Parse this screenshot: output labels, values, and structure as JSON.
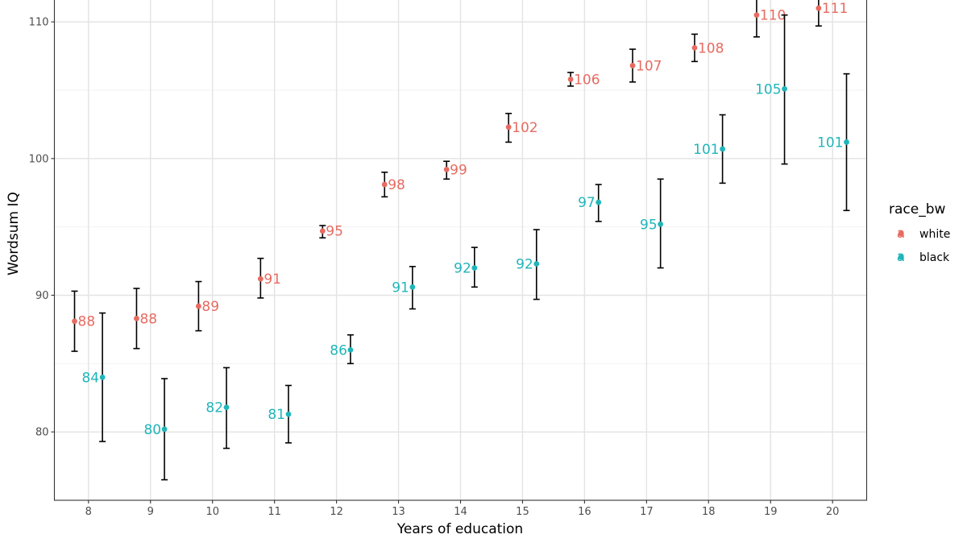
{
  "chart_data": {
    "type": "scatter",
    "title": "",
    "xlabel": "Years of education",
    "ylabel": "Wordsum IQ",
    "xlim": [
      7.45,
      20.55
    ],
    "ylim": [
      75.0,
      111.6
    ],
    "x_ticks": [
      8,
      9,
      10,
      11,
      12,
      13,
      14,
      15,
      16,
      17,
      18,
      19,
      20
    ],
    "y_ticks": [
      80,
      90,
      100,
      110
    ],
    "grid": true,
    "legend": {
      "title": "race_bw",
      "position": "right"
    },
    "series": [
      {
        "name": "white",
        "color": "#E76B61",
        "points": [
          {
            "x": 8,
            "y": 88.1,
            "lower": 85.9,
            "upper": 90.3,
            "label": "88"
          },
          {
            "x": 9,
            "y": 88.3,
            "lower": 86.1,
            "upper": 90.5,
            "label": "88"
          },
          {
            "x": 10,
            "y": 89.2,
            "lower": 87.4,
            "upper": 91.0,
            "label": "89"
          },
          {
            "x": 11,
            "y": 91.2,
            "lower": 89.8,
            "upper": 92.7,
            "label": "91"
          },
          {
            "x": 12,
            "y": 94.7,
            "lower": 94.2,
            "upper": 95.1,
            "label": "95"
          },
          {
            "x": 13,
            "y": 98.1,
            "lower": 97.2,
            "upper": 99.0,
            "label": "98"
          },
          {
            "x": 14,
            "y": 99.2,
            "lower": 98.5,
            "upper": 99.8,
            "label": "99"
          },
          {
            "x": 15,
            "y": 102.3,
            "lower": 101.2,
            "upper": 103.3,
            "label": "102"
          },
          {
            "x": 16,
            "y": 105.8,
            "lower": 105.3,
            "upper": 106.3,
            "label": "106"
          },
          {
            "x": 17,
            "y": 106.8,
            "lower": 105.6,
            "upper": 108.0,
            "label": "107"
          },
          {
            "x": 18,
            "y": 108.1,
            "lower": 107.1,
            "upper": 109.1,
            "label": "108"
          },
          {
            "x": 19,
            "y": 110.5,
            "lower": 108.9,
            "upper": 112.0,
            "label": "110"
          },
          {
            "x": 20,
            "y": 111.0,
            "lower": 109.7,
            "upper": 112.0,
            "label": "111"
          }
        ]
      },
      {
        "name": "black",
        "color": "#20B5BA",
        "points": [
          {
            "x": 8,
            "y": 84.0,
            "lower": 79.3,
            "upper": 88.7,
            "label": "84"
          },
          {
            "x": 9,
            "y": 80.2,
            "lower": 76.5,
            "upper": 83.9,
            "label": "80"
          },
          {
            "x": 10,
            "y": 81.8,
            "lower": 78.8,
            "upper": 84.7,
            "label": "82"
          },
          {
            "x": 11,
            "y": 81.3,
            "lower": 79.2,
            "upper": 83.4,
            "label": "81"
          },
          {
            "x": 12,
            "y": 86.0,
            "lower": 85.0,
            "upper": 87.1,
            "label": "86"
          },
          {
            "x": 13,
            "y": 90.6,
            "lower": 89.0,
            "upper": 92.1,
            "label": "91"
          },
          {
            "x": 14,
            "y": 92.0,
            "lower": 90.6,
            "upper": 93.5,
            "label": "92"
          },
          {
            "x": 15,
            "y": 92.3,
            "lower": 89.7,
            "upper": 94.8,
            "label": "92"
          },
          {
            "x": 16,
            "y": 96.8,
            "lower": 95.4,
            "upper": 98.1,
            "label": "97"
          },
          {
            "x": 17,
            "y": 95.2,
            "lower": 92.0,
            "upper": 98.5,
            "label": "95"
          },
          {
            "x": 18,
            "y": 100.7,
            "lower": 98.2,
            "upper": 103.2,
            "label": "101"
          },
          {
            "x": 19,
            "y": 105.1,
            "lower": 99.6,
            "upper": 110.5,
            "label": "105"
          },
          {
            "x": 20,
            "y": 101.2,
            "lower": 96.2,
            "upper": 106.2,
            "label": "101"
          }
        ]
      }
    ]
  }
}
